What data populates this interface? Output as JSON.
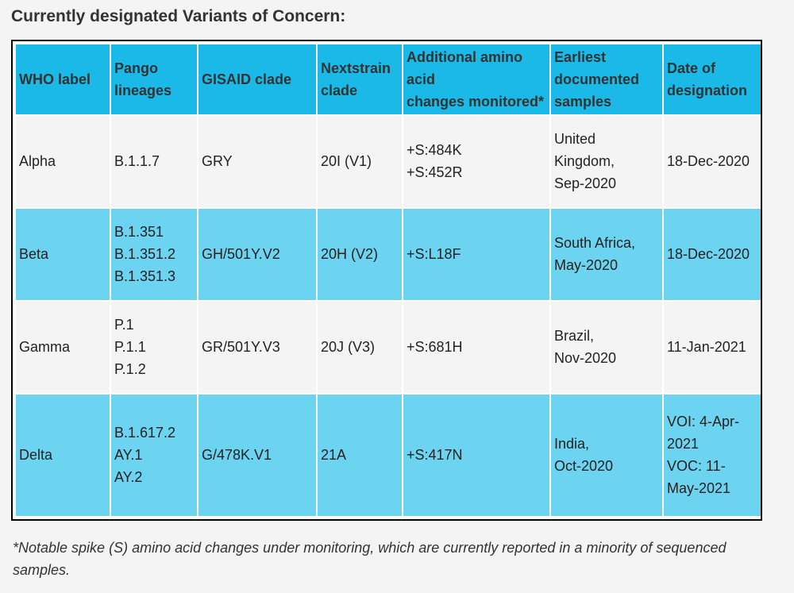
{
  "heading": "Currently designated Variants of Concern:",
  "columns": [
    {
      "lines": [
        "WHO label"
      ]
    },
    {
      "lines": [
        "Pango",
        "lineages"
      ]
    },
    {
      "lines": [
        "GISAID clade"
      ]
    },
    {
      "lines": [
        "Nextstrain",
        "clade"
      ]
    },
    {
      "lines": [
        "Additional amino",
        "acid",
        "changes monitored*"
      ]
    },
    {
      "lines": [
        "Earliest",
        "documented",
        "samples"
      ]
    },
    {
      "lines": [
        "Date of",
        "designation"
      ]
    }
  ],
  "rows": [
    {
      "who_label": "Alpha",
      "pango": [
        "B.1.1.7"
      ],
      "gisaid": "GRY",
      "nextstrain": "20I (V1)",
      "amino": [
        "+S:484K",
        "+S:452R"
      ],
      "samples": [
        "United",
        "Kingdom,",
        "Sep-2020"
      ],
      "designation": [
        "18-Dec-2020"
      ]
    },
    {
      "who_label": "Beta",
      "pango": [
        "B.1.351",
        "B.1.351.2",
        "B.1.351.3"
      ],
      "gisaid": "GH/501Y.V2",
      "nextstrain": "20H (V2)",
      "amino": [
        "+S:L18F"
      ],
      "samples": [
        "South Africa,",
        "May-2020"
      ],
      "designation": [
        "18-Dec-2020"
      ]
    },
    {
      "who_label": "Gamma",
      "pango": [
        "P.1",
        "P.1.1",
        "P.1.2"
      ],
      "gisaid": "GR/501Y.V3",
      "nextstrain": "20J (V3)",
      "amino": [
        "+S:681H"
      ],
      "samples": [
        "Brazil,",
        "Nov-2020"
      ],
      "designation": [
        "11-Jan-2021"
      ]
    },
    {
      "who_label": "Delta",
      "pango": [
        "B.1.617.2",
        "AY.1",
        "AY.2"
      ],
      "gisaid": "G/478K.V1",
      "nextstrain": "21A",
      "amino": [
        "+S:417N"
      ],
      "samples": [
        "India,",
        "Oct-2020"
      ],
      "designation": [
        "VOI: 4-Apr-",
        "2021",
        "VOC: 11-",
        "May-2021"
      ]
    }
  ],
  "footnote": "*Notable spike (S) amino acid changes under monitoring, which are currently reported in a minority of sequenced samples."
}
